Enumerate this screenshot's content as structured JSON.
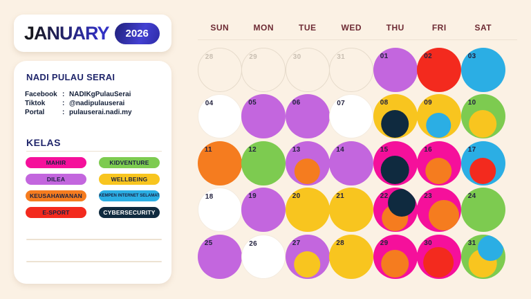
{
  "header": {
    "month": "JANUARY",
    "year": "2026"
  },
  "sidebar": {
    "title": "NADI PULAU SERAI",
    "contacts": [
      {
        "label": "Facebook",
        "sep": ":",
        "value": "NADIKgPulauSerai"
      },
      {
        "label": "Tiktok",
        "sep": ":",
        "value": "@nadipulauserai"
      },
      {
        "label": "Portal",
        "sep": ":",
        "value": "pulauserai.nadi.my"
      }
    ],
    "kelas_heading": "KELAS",
    "legend_order": [
      "mahir",
      "kidventure",
      "dilea",
      "wellbeing",
      "keusahawanan",
      "kempen",
      "esport",
      "cybersecurity"
    ]
  },
  "classes": {
    "mahir": {
      "label": "MAHIR",
      "color": "#F5109B",
      "text": "#1B2140"
    },
    "kidventure": {
      "label": "KIDVENTURE",
      "color": "#7DCB50",
      "text": "#1B2140"
    },
    "dilea": {
      "label": "DILEA",
      "color": "#C366DE",
      "text": "#1B2140"
    },
    "wellbeing": {
      "label": "WELLBEING",
      "color": "#F8C51F",
      "text": "#1B2140"
    },
    "keusahawanan": {
      "label": "KEUSAHAWANAN",
      "color": "#F57C1F",
      "text": "#1B2140"
    },
    "kempen": {
      "label": "KEMPEN INTERNET SELAMAT",
      "color": "#2BAEE4",
      "text": "#1B2140",
      "small": true
    },
    "esport": {
      "label": "E-SPORT",
      "color": "#F32A1E",
      "text": "#1B2140"
    },
    "cybersecurity": {
      "label": "CYBERSECURITY",
      "color": "#0F2A3F",
      "text": "#FFFFFF"
    }
  },
  "calendar": {
    "weekdays": [
      "SUN",
      "MON",
      "TUE",
      "WED",
      "THU",
      "FRI",
      "SAT"
    ],
    "days": [
      {
        "num": "28",
        "type": "ghost"
      },
      {
        "num": "29",
        "type": "ghost"
      },
      {
        "num": "30",
        "type": "ghost"
      },
      {
        "num": "31",
        "type": "ghost"
      },
      {
        "num": "01",
        "base": "dilea"
      },
      {
        "num": "02",
        "base": "esport"
      },
      {
        "num": "03",
        "base": "kempen"
      },
      {
        "num": "04",
        "base": "none"
      },
      {
        "num": "05",
        "base": "dilea"
      },
      {
        "num": "06",
        "base": "dilea"
      },
      {
        "num": "07",
        "base": "none"
      },
      {
        "num": "08",
        "base": "wellbeing",
        "inner": [
          {
            "key": "cybersecurity",
            "pos": "bottom",
            "size": 0.63
          }
        ]
      },
      {
        "num": "09",
        "base": "wellbeing",
        "inner": [
          {
            "key": "kempen",
            "pos": "bottom",
            "size": 0.56
          }
        ]
      },
      {
        "num": "10",
        "base": "kidventure",
        "inner": [
          {
            "key": "wellbeing",
            "pos": "bottom",
            "size": 0.62
          }
        ]
      },
      {
        "num": "11",
        "base": "keusahawanan"
      },
      {
        "num": "12",
        "base": "kidventure"
      },
      {
        "num": "13",
        "base": "dilea",
        "inner": [
          {
            "key": "keusahawanan",
            "pos": "bottom",
            "size": 0.58
          }
        ]
      },
      {
        "num": "14",
        "base": "dilea"
      },
      {
        "num": "15",
        "base": "mahir",
        "inner": [
          {
            "key": "cybersecurity",
            "pos": "bottom",
            "size": 0.64
          }
        ]
      },
      {
        "num": "16",
        "base": "mahir",
        "inner": [
          {
            "key": "keusahawanan",
            "pos": "bottom",
            "size": 0.6
          }
        ]
      },
      {
        "num": "17",
        "base": "kempen",
        "inner": [
          {
            "key": "esport",
            "pos": "bottom",
            "size": 0.6
          }
        ]
      },
      {
        "num": "18",
        "base": "none"
      },
      {
        "num": "19",
        "base": "dilea"
      },
      {
        "num": "20",
        "base": "wellbeing"
      },
      {
        "num": "21",
        "base": "wellbeing"
      },
      {
        "num": "22",
        "base": "mahir",
        "inner": [
          {
            "key": "keusahawanan",
            "pos": "bottom",
            "size": 0.6
          },
          {
            "key": "cybersecurity",
            "pos": "top-right",
            "size": 0.62
          }
        ]
      },
      {
        "num": "23",
        "base": "mahir",
        "inner": [
          {
            "key": "keusahawanan",
            "pos": "bottom-right",
            "size": 0.68
          }
        ]
      },
      {
        "num": "24",
        "base": "kidventure"
      },
      {
        "num": "25",
        "base": "dilea"
      },
      {
        "num": "26",
        "base": "none"
      },
      {
        "num": "27",
        "base": "dilea",
        "inner": [
          {
            "key": "wellbeing",
            "pos": "bottom",
            "size": 0.6
          }
        ]
      },
      {
        "num": "28",
        "base": "wellbeing"
      },
      {
        "num": "29",
        "base": "mahir",
        "inner": [
          {
            "key": "keusahawanan",
            "pos": "bottom",
            "size": 0.63
          }
        ]
      },
      {
        "num": "30",
        "base": "mahir",
        "inner": [
          {
            "key": "esport",
            "pos": "bottom",
            "size": 0.68
          }
        ]
      },
      {
        "num": "31",
        "base": "kidventure",
        "inner": [
          {
            "key": "wellbeing",
            "pos": "bottom",
            "size": 0.64
          },
          {
            "key": "kempen",
            "pos": "top-right",
            "size": 0.58
          }
        ]
      }
    ]
  },
  "palette": {
    "bg": "#FBF1E4",
    "card": "#FFFFFF",
    "weekday": "#6D2A33",
    "navy": "#20266B",
    "ink": "#131F38",
    "day-num": "#23223E",
    "ghost-line": "#E6DBCB",
    "ghost-text": "#C8BEB1",
    "divider": "#EDE2D2",
    "title-grad-a": "#17171E",
    "title-grad-b": "#3231C4",
    "pill-grad-a": "#20207A",
    "pill-grad-b": "#4340D2"
  }
}
